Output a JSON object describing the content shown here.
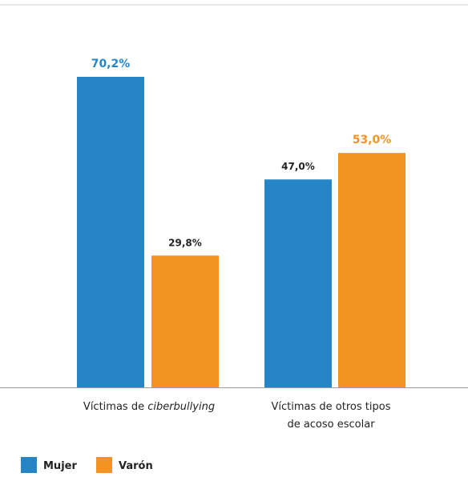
{
  "chart_data": {
    "type": "bar",
    "categories": [
      {
        "prefix": "Víctimas de ",
        "emph": "ciberbullying"
      },
      {
        "lines": [
          "Víctimas de otros tipos",
          "de acoso escolar"
        ]
      }
    ],
    "series": [
      {
        "name": "Mujer",
        "color": "#2585C7",
        "values": [
          70.2,
          47.0
        ],
        "labels": [
          "70,2%",
          "47,0%"
        ]
      },
      {
        "name": "Varón",
        "color": "#F39322",
        "values": [
          29.8,
          53.0
        ],
        "labels": [
          "29,8%",
          "53,0%"
        ]
      }
    ],
    "highlight_labels": [
      [
        true,
        false
      ],
      [
        false,
        true
      ]
    ],
    "ylim": [
      0,
      75
    ],
    "grid": false,
    "legend_position": "bottom-left"
  }
}
